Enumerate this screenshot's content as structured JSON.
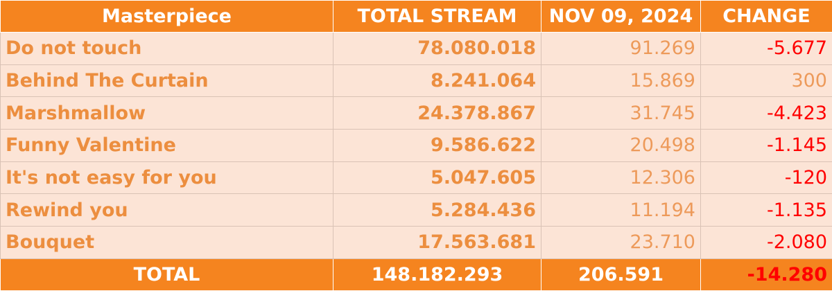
{
  "header": {
    "col_song": "Masterpiece",
    "col_total": "TOTAL STREAM",
    "col_daily": "NOV 09, 2024",
    "col_change": "CHANGE"
  },
  "rows": [
    {
      "song": "Do not touch",
      "total": "78.080.018",
      "daily": "91.269",
      "change": "-5.677",
      "change_sign": "negative"
    },
    {
      "song": "Behind The Curtain",
      "total": "8.241.064",
      "daily": "15.869",
      "change": "300",
      "change_sign": "positive"
    },
    {
      "song": "Marshmallow",
      "total": "24.378.867",
      "daily": "31.745",
      "change": "-4.423",
      "change_sign": "negative"
    },
    {
      "song": "Funny Valentine",
      "total": "9.586.622",
      "daily": "20.498",
      "change": "-1.145",
      "change_sign": "negative"
    },
    {
      "song": "It's not easy for you",
      "total": "5.047.605",
      "daily": "12.306",
      "change": "-120",
      "change_sign": "negative"
    },
    {
      "song": "Rewind you",
      "total": "5.284.436",
      "daily": "11.194",
      "change": "-1.135",
      "change_sign": "negative"
    },
    {
      "song": "Bouquet",
      "total": "17.563.681",
      "daily": "23.710",
      "change": "-2.080",
      "change_sign": "negative"
    }
  ],
  "footer": {
    "label": "TOTAL",
    "total": "148.182.293",
    "daily": "206.591",
    "change": "-14.280"
  },
  "colors": {
    "header_bg": "#f5841f",
    "row_bg": "#fce4d6",
    "song_text": "#ec8e3f",
    "negative_change": "#ff0000"
  }
}
